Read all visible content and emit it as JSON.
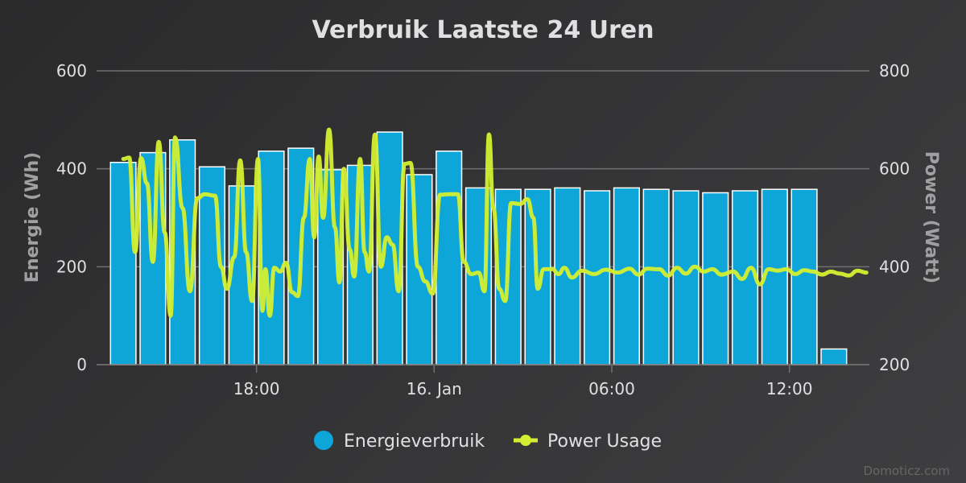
{
  "colors": {
    "bar": "#0ea5d9",
    "bar_border": "#ffffff",
    "line": "#d4ef32",
    "grid": "#707073",
    "text": "#e0e0e3",
    "axis_title": "#a0a0a3"
  },
  "credits": "Domoticz.com",
  "chart_data": {
    "type": "bar+line",
    "title": "Verbruik Laatste 24 Uren",
    "xlabel": "",
    "x_ticks": [
      "18:00",
      "16. Jan",
      "06:00",
      "12:00"
    ],
    "x_tick_hours": [
      18,
      24,
      30,
      36
    ],
    "x_range_hours": [
      12.6,
      38.7
    ],
    "grid": true,
    "legend_position": "bottom-center",
    "y_left": {
      "label": "Energie (Wh)",
      "ylim": [
        0,
        600
      ],
      "ticks": [
        0,
        200,
        400,
        600
      ]
    },
    "y_right": {
      "label": "Power (Watt)",
      "ylim": [
        200,
        800
      ],
      "ticks": [
        200,
        400,
        600,
        800
      ]
    },
    "series": [
      {
        "name": "Energieverbruik",
        "type": "bar",
        "axis": "left",
        "hours": [
          13.5,
          14.5,
          15.5,
          16.5,
          17.5,
          18.5,
          19.5,
          20.5,
          21.5,
          22.5,
          23.5,
          24.5,
          25.5,
          26.5,
          27.5,
          28.5,
          29.5,
          30.5,
          31.5,
          32.5,
          33.5,
          34.5,
          35.5,
          36.5,
          37.5
        ],
        "values": [
          413,
          433,
          459,
          404,
          365,
          436,
          442,
          398,
          407,
          475,
          388,
          436,
          361,
          358,
          358,
          361,
          355,
          361,
          358,
          355,
          351,
          355,
          358,
          358,
          32
        ]
      },
      {
        "name": "Power Usage",
        "type": "line",
        "axis": "right",
        "points": [
          [
            13.5,
            620
          ],
          [
            13.7,
            623
          ],
          [
            13.9,
            430
          ],
          [
            14.1,
            622
          ],
          [
            14.3,
            570
          ],
          [
            14.5,
            410
          ],
          [
            14.7,
            655
          ],
          [
            14.9,
            470
          ],
          [
            15.1,
            300
          ],
          [
            15.25,
            664
          ],
          [
            15.5,
            520
          ],
          [
            15.75,
            350
          ],
          [
            16.0,
            540
          ],
          [
            16.25,
            548
          ],
          [
            16.6,
            545
          ],
          [
            16.8,
            400
          ],
          [
            17.0,
            355
          ],
          [
            17.25,
            420
          ],
          [
            17.45,
            617
          ],
          [
            17.65,
            430
          ],
          [
            17.85,
            330
          ],
          [
            18.05,
            620
          ],
          [
            18.2,
            310
          ],
          [
            18.3,
            395
          ],
          [
            18.45,
            300
          ],
          [
            18.6,
            398
          ],
          [
            18.8,
            390
          ],
          [
            19.0,
            408
          ],
          [
            19.2,
            348
          ],
          [
            19.4,
            340
          ],
          [
            19.6,
            500
          ],
          [
            19.8,
            620
          ],
          [
            19.95,
            460
          ],
          [
            20.1,
            625
          ],
          [
            20.25,
            500
          ],
          [
            20.45,
            680
          ],
          [
            20.65,
            480
          ],
          [
            20.8,
            368
          ],
          [
            20.95,
            600
          ],
          [
            21.15,
            435
          ],
          [
            21.3,
            380
          ],
          [
            21.5,
            620
          ],
          [
            21.65,
            430
          ],
          [
            21.8,
            390
          ],
          [
            22.0,
            670
          ],
          [
            22.2,
            400
          ],
          [
            22.4,
            460
          ],
          [
            22.6,
            445
          ],
          [
            22.8,
            350
          ],
          [
            23.0,
            610
          ],
          [
            23.2,
            612
          ],
          [
            23.45,
            400
          ],
          [
            23.7,
            370
          ],
          [
            23.95,
            345
          ],
          [
            24.2,
            547
          ],
          [
            24.5,
            548
          ],
          [
            24.8,
            548
          ],
          [
            25.0,
            410
          ],
          [
            25.25,
            385
          ],
          [
            25.5,
            388
          ],
          [
            25.7,
            350
          ],
          [
            25.85,
            670
          ],
          [
            26.0,
            520
          ],
          [
            26.2,
            355
          ],
          [
            26.4,
            330
          ],
          [
            26.6,
            530
          ],
          [
            26.9,
            528
          ],
          [
            27.15,
            538
          ],
          [
            27.35,
            500
          ],
          [
            27.5,
            355
          ],
          [
            27.7,
            395
          ],
          [
            28.0,
            395
          ],
          [
            28.2,
            385
          ],
          [
            28.4,
            398
          ],
          [
            28.65,
            378
          ],
          [
            29.0,
            392
          ],
          [
            29.4,
            385
          ],
          [
            29.8,
            394
          ],
          [
            30.2,
            388
          ],
          [
            30.6,
            396
          ],
          [
            30.9,
            384
          ],
          [
            31.2,
            396
          ],
          [
            31.6,
            395
          ],
          [
            31.9,
            382
          ],
          [
            32.2,
            398
          ],
          [
            32.5,
            386
          ],
          [
            32.8,
            400
          ],
          [
            33.1,
            390
          ],
          [
            33.4,
            395
          ],
          [
            33.7,
            384
          ],
          [
            34.1,
            390
          ],
          [
            34.4,
            375
          ],
          [
            34.7,
            398
          ],
          [
            35.0,
            364
          ],
          [
            35.3,
            395
          ],
          [
            35.6,
            392
          ],
          [
            35.9,
            395
          ],
          [
            36.2,
            385
          ],
          [
            36.5,
            393
          ],
          [
            36.8,
            390
          ],
          [
            37.1,
            384
          ],
          [
            37.4,
            390
          ],
          [
            37.7,
            386
          ],
          [
            38.0,
            382
          ],
          [
            38.3,
            392
          ],
          [
            38.6,
            388
          ]
        ]
      }
    ]
  }
}
